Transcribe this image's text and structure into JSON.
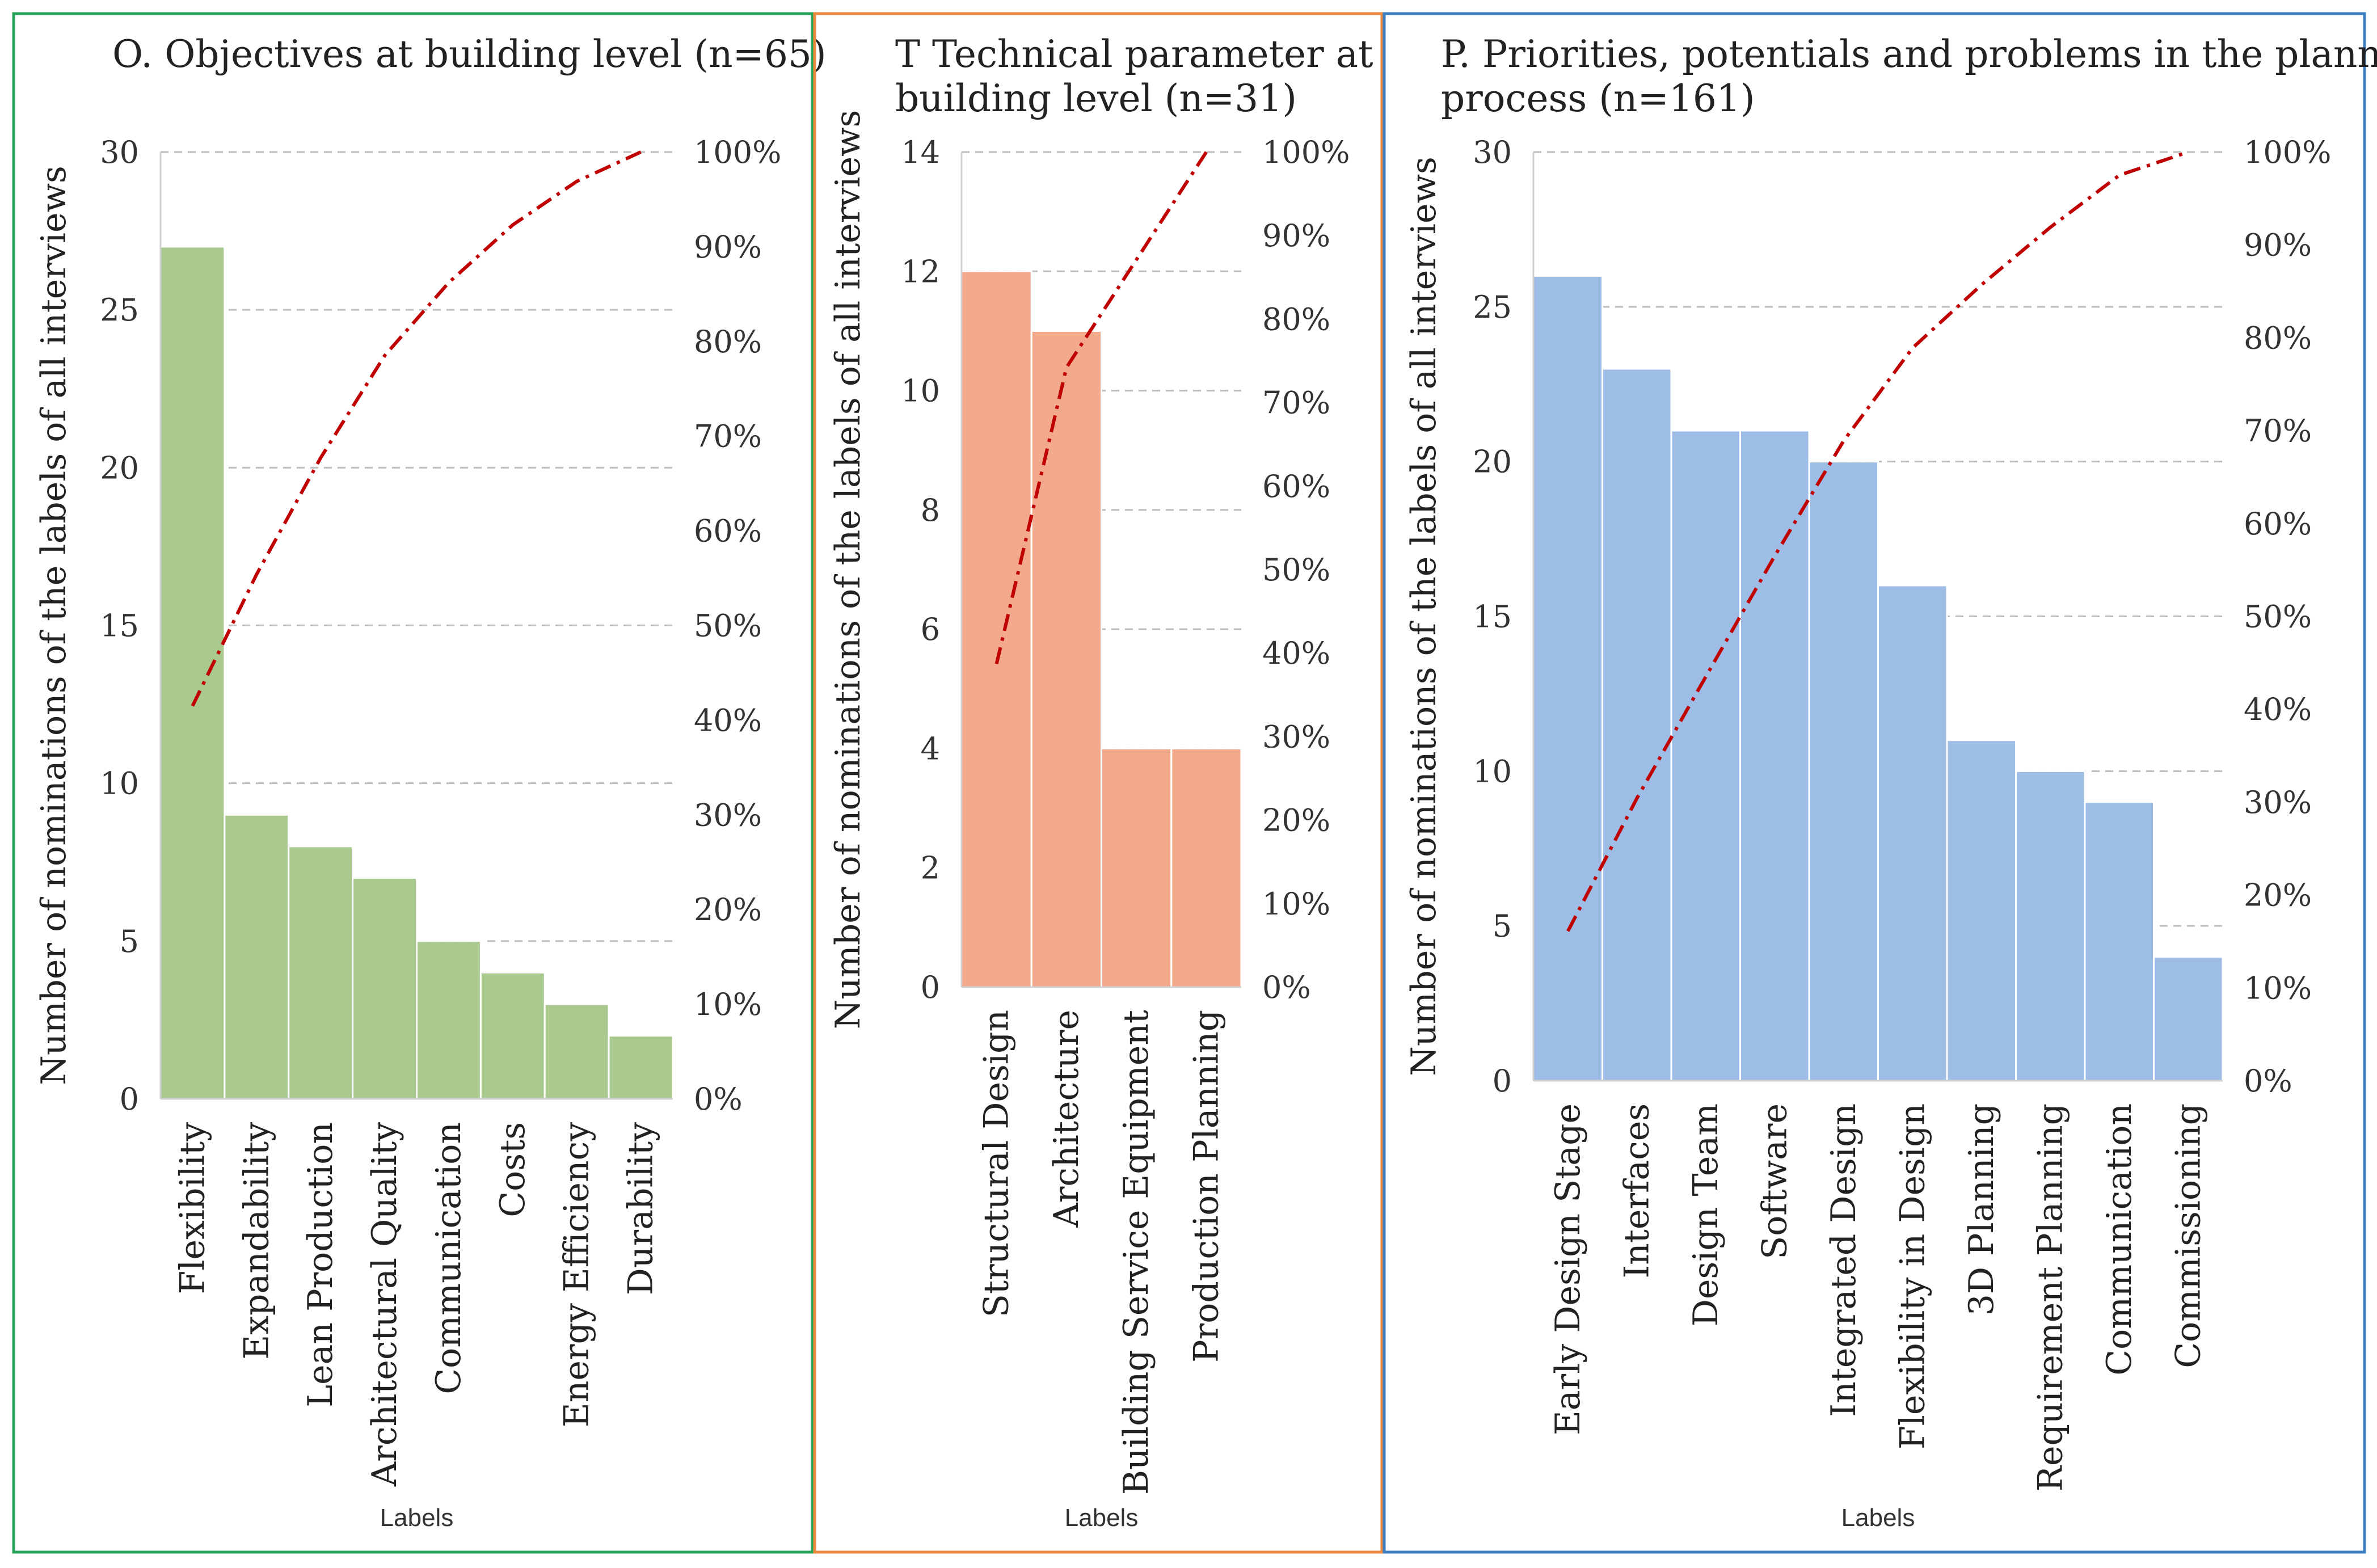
{
  "chart_data": [
    {
      "type": "bar",
      "title_lines": [
        "O. Objectives at building level (n=65)"
      ],
      "xlabel": "Labels",
      "ylabel": "Number of  nominations of the labels of all interviews",
      "categories": [
        "Flexibility",
        "Expandability",
        "Lean Production",
        "Architectural Quality",
        "Communication",
        "Costs",
        "Energy Efficiency",
        "Durability"
      ],
      "values": [
        27,
        9,
        8,
        7,
        5,
        4,
        3,
        2
      ],
      "ylim": [
        0,
        30
      ],
      "yticks": [
        "0",
        "5",
        "10",
        "15",
        "20",
        "25",
        "30"
      ],
      "y2ticks": [
        "0%",
        "10%",
        "20%",
        "30%",
        "40%",
        "50%",
        "60%",
        "70%",
        "80%",
        "90%",
        "100%"
      ],
      "cumulative_percent": [
        41.5,
        55.4,
        67.7,
        78.5,
        86.2,
        92.3,
        96.9,
        100
      ],
      "bar_color": "#a9c98e",
      "line_color": "#c00000",
      "frame_color": "#2aa35a",
      "grid": true
    },
    {
      "type": "bar",
      "title_lines": [
        "T Technical parameter at",
        "building level (n=31)"
      ],
      "xlabel": "Labels",
      "ylabel": "Number of  nominations of the labels of all interviews",
      "categories": [
        "Structural Design",
        "Architecture",
        "Building Service Equipment",
        "Production Planning"
      ],
      "values": [
        12,
        11,
        4,
        4
      ],
      "ylim": [
        0,
        14
      ],
      "yticks": [
        "0",
        "2",
        "4",
        "6",
        "8",
        "10",
        "12",
        "14"
      ],
      "y2ticks": [
        "0%",
        "10%",
        "20%",
        "30%",
        "40%",
        "50%",
        "60%",
        "70%",
        "80%",
        "90%",
        "100%"
      ],
      "cumulative_percent": [
        38.7,
        74.2,
        87.1,
        100
      ],
      "bar_color": "#f2a98c",
      "line_color": "#c00000",
      "frame_color": "#e8893f",
      "grid": true
    },
    {
      "type": "bar",
      "title_lines": [
        "P. Priorities, potentials and problems in the planning",
        "process (n=161)"
      ],
      "xlabel": "Labels",
      "ylabel": "Number of nominations of the labels of all interviews",
      "categories": [
        "Early Design Stage",
        "Interfaces",
        "Design Team",
        "Software",
        "Integrated Design",
        "Flexibility in Design",
        "3D Planning",
        "Requirement Planning",
        "Communication",
        "Commissioning"
      ],
      "values": [
        26,
        23,
        21,
        21,
        20,
        16,
        11,
        10,
        9,
        4
      ],
      "ylim": [
        0,
        30
      ],
      "yticks": [
        "0",
        "5",
        "10",
        "15",
        "20",
        "25",
        "30"
      ],
      "y2ticks": [
        "0%",
        "10%",
        "20%",
        "30%",
        "40%",
        "50%",
        "60%",
        "70%",
        "80%",
        "90%",
        "100%"
      ],
      "cumulative_percent": [
        16.1,
        30.4,
        43.5,
        56.5,
        68.9,
        78.9,
        85.7,
        91.9,
        97.5,
        100
      ],
      "bar_color": "#9dbde6",
      "line_color": "#c00000",
      "frame_color": "#3d7fc4",
      "grid": true
    }
  ]
}
